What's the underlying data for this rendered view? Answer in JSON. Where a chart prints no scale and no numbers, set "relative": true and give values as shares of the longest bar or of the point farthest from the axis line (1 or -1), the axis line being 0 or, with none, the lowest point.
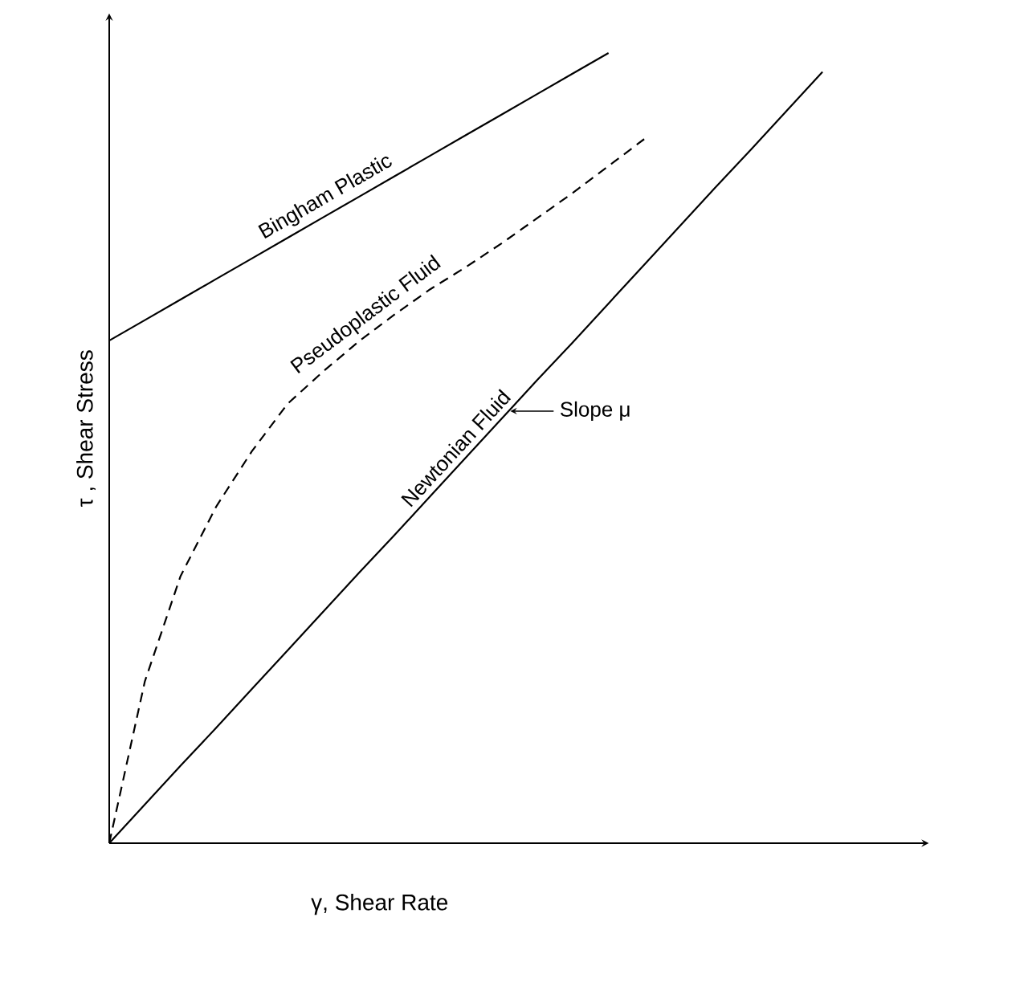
{
  "chart_data": {
    "type": "line",
    "relative": true,
    "xlabel": "γ, Shear Rate",
    "ylabel": "τ , Shear Stress",
    "marker": "none",
    "categories": [
      null,
      null,
      null,
      null,
      null,
      null,
      null,
      null,
      null,
      null,
      null,
      null,
      null,
      null,
      null,
      null,
      null,
      null,
      null,
      null,
      null
    ],
    "series": [
      {
        "name": "Bingham Plastic",
        "color": "#000000",
        "line_style": "solid",
        "values": [
          0.636,
          0.662,
          0.688,
          0.714,
          0.74,
          0.766,
          0.792,
          0.818,
          0.844,
          0.87,
          0.896,
          0.922,
          0.948,
          0.974,
          1.0,
          null,
          null,
          null,
          null,
          null,
          null
        ]
      },
      {
        "name": "Pseudoplastic Fluid",
        "color": "#000000",
        "line_style": "dashed",
        "values": [
          0,
          0.205,
          0.338,
          0.426,
          0.496,
          0.556,
          0.597,
          0.635,
          0.669,
          0.701,
          0.729,
          0.759,
          0.791,
          0.823,
          0.857,
          0.891,
          null,
          null,
          null,
          null,
          null
        ]
      },
      {
        "name": "Newtonian Fluid",
        "color": "#000000",
        "line_style": "solid",
        "values": [
          0,
          0.049,
          0.098,
          0.146,
          0.195,
          0.244,
          0.293,
          0.342,
          0.39,
          0.439,
          0.488,
          0.537,
          0.586,
          0.634,
          0.683,
          0.732,
          0.781,
          0.83,
          0.878,
          0.927,
          0.976
        ]
      }
    ],
    "annotations": [
      "Slope μ"
    ]
  }
}
